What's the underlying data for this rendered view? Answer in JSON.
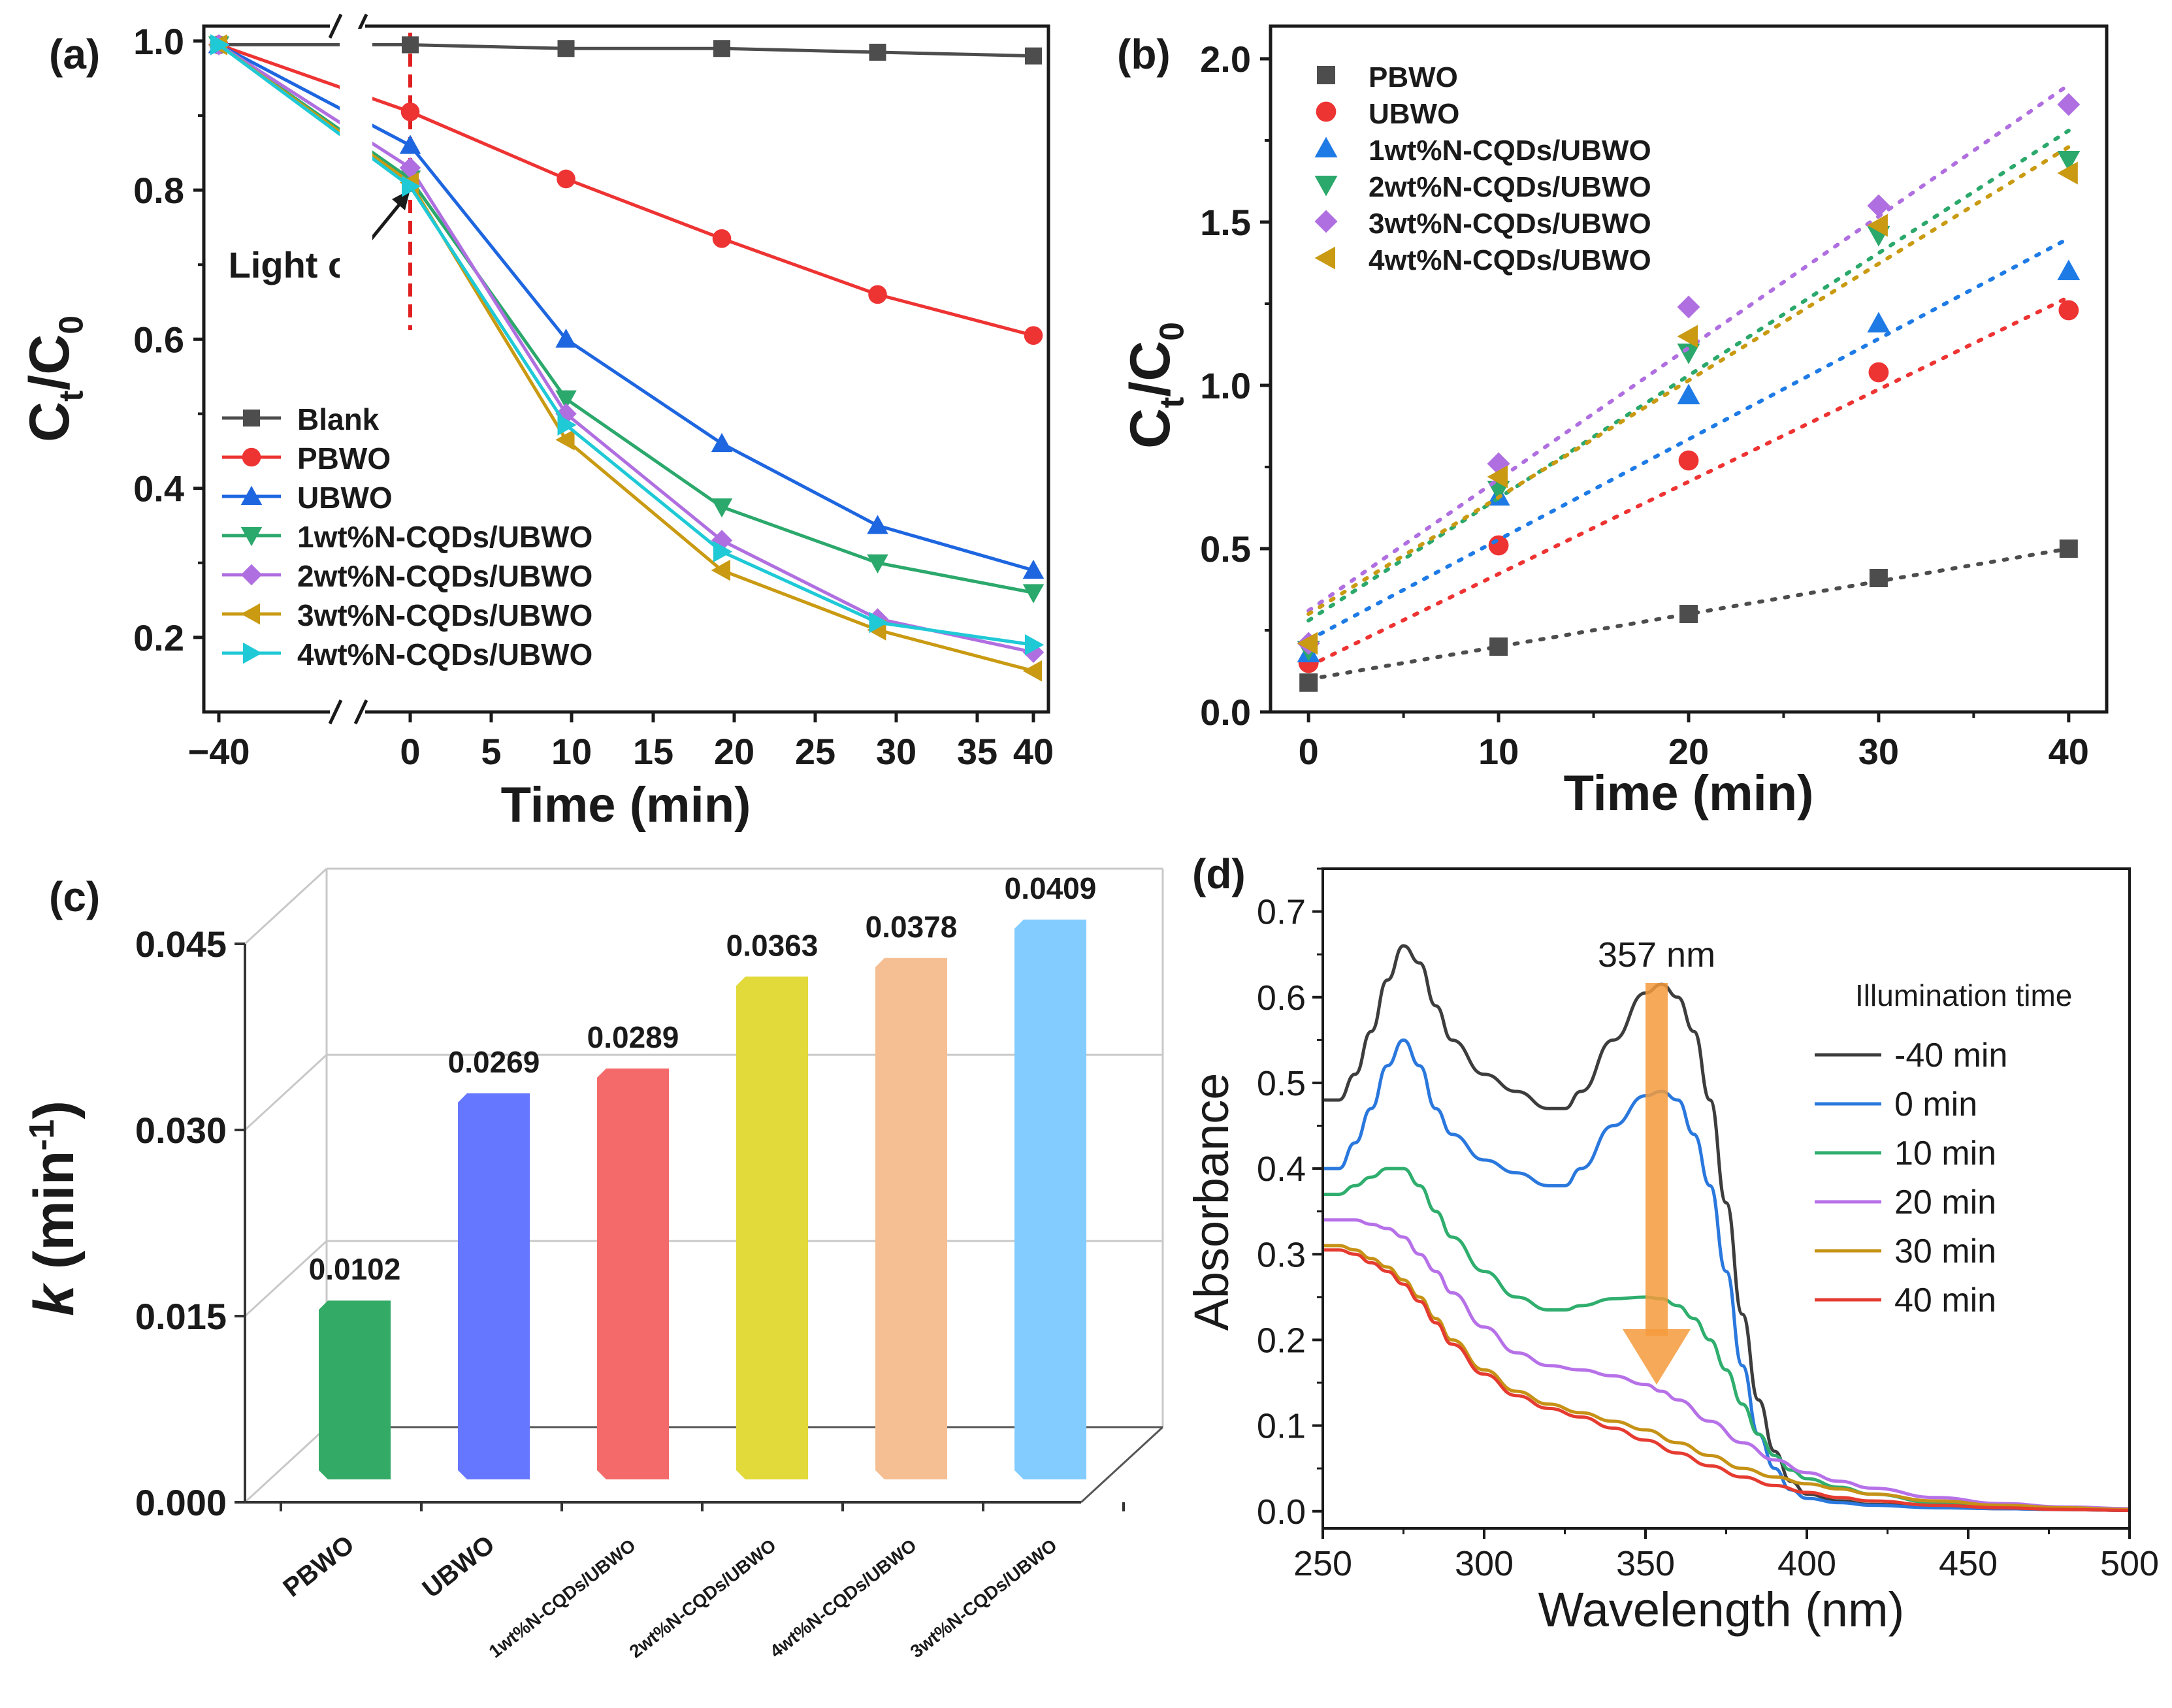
{
  "colors": {
    "blank": "#4d4d4d",
    "pbwo": "#ee3333",
    "ubwo": "#1e66e0",
    "n1": "#2ba86b",
    "n2": "#b06fe0",
    "n3": "#c99a12",
    "n4": "#1fc9d6",
    "gray": "#4d4d4d",
    "red": "#ee3333",
    "blue": "#1e7be6",
    "green": "#2ba86b",
    "purple": "#b06fe0",
    "gold": "#c99a12",
    "bar_green": "#33aa66",
    "bar_blue": "#6677ff",
    "bar_red": "#f46a6a",
    "bar_yellow": "#e2d93a",
    "bar_peach": "#f5bf93",
    "bar_cyan": "#82ccff",
    "arrow": "#f59b3c",
    "marker": "#e02020",
    "spec_k": "#3d3d3d",
    "spec_b": "#2a78dd",
    "spec_g": "#2fae6e",
    "spec_p": "#b771e8",
    "spec_o": "#c69216",
    "spec_r": "#e53b30"
  },
  "chart_data": [
    {
      "panel": "a",
      "panel_label": "(a)",
      "type": "line",
      "xlabel": "Time (min)",
      "ylabel_main": "C",
      "ylabel_sub1": "t",
      "ylabel_slash": "/C",
      "ylabel_sub2": "0",
      "x_break": true,
      "x": [
        -40,
        0,
        10,
        20,
        30,
        40
      ],
      "xticks": [
        "−40",
        "0",
        "5",
        "10",
        "15",
        "20",
        "25",
        "30",
        "35",
        "40"
      ],
      "yticks": [
        "0.2",
        "0.4",
        "0.6",
        "0.8",
        "1.0"
      ],
      "ylim": [
        0.1,
        1.02
      ],
      "annotation": "Light on",
      "series": [
        {
          "name": "Blank",
          "color": "blank",
          "marker": "square",
          "values": [
            0.995,
            0.995,
            0.99,
            0.99,
            0.985,
            0.98
          ]
        },
        {
          "name": "PBWO",
          "color": "pbwo",
          "marker": "circle",
          "values": [
            0.995,
            0.905,
            0.815,
            0.735,
            0.66,
            0.605
          ]
        },
        {
          "name": "UBWO",
          "color": "ubwo",
          "marker": "triangle-up",
          "values": [
            0.995,
            0.86,
            0.6,
            0.46,
            0.35,
            0.29
          ]
        },
        {
          "name": "1wt%N-CQDs/UBWO",
          "color": "n1",
          "marker": "triangle-down",
          "values": [
            0.995,
            0.815,
            0.52,
            0.375,
            0.3,
            0.26
          ]
        },
        {
          "name": "2wt%N-CQDs/UBWO",
          "color": "n2",
          "marker": "diamond",
          "values": [
            0.995,
            0.83,
            0.5,
            0.33,
            0.225,
            0.18
          ]
        },
        {
          "name": "3wt%N-CQDs/UBWO",
          "color": "n3",
          "marker": "triangle-left",
          "values": [
            0.995,
            0.81,
            0.465,
            0.29,
            0.21,
            0.155
          ]
        },
        {
          "name": "4wt%N-CQDs/UBWO",
          "color": "n4",
          "marker": "triangle-right",
          "values": [
            0.995,
            0.805,
            0.485,
            0.315,
            0.22,
            0.19
          ]
        }
      ]
    },
    {
      "panel": "b",
      "panel_label": "(b)",
      "type": "scatter",
      "xlabel": "Time (min)",
      "ylabel_main": "C",
      "ylabel_sub1": "t",
      "ylabel_slash": "/C",
      "ylabel_sub2": "0",
      "x": [
        0,
        10,
        20,
        30,
        40
      ],
      "xticks": [
        "0",
        "10",
        "20",
        "30",
        "40"
      ],
      "yticks": [
        "0.0",
        "0.5",
        "1.0",
        "1.5",
        "2.0"
      ],
      "xlim": [
        -2,
        42
      ],
      "ylim": [
        0,
        2.1
      ],
      "series": [
        {
          "name": "PBWO",
          "color": "gray",
          "marker": "square",
          "values": [
            0.09,
            0.2,
            0.3,
            0.41,
            0.5
          ],
          "fit": [
            0.1,
            0.5
          ]
        },
        {
          "name": "UBWO",
          "color": "red",
          "marker": "circle",
          "values": [
            0.15,
            0.51,
            0.77,
            1.04,
            1.23
          ],
          "fit": [
            0.14,
            1.27
          ]
        },
        {
          "name": "1wt%N-CQDs/UBWO",
          "color": "blue",
          "marker": "triangle-up",
          "values": [
            0.18,
            0.66,
            0.97,
            1.19,
            1.35
          ],
          "fit": [
            0.22,
            1.45
          ]
        },
        {
          "name": "2wt%N-CQDs/UBWO",
          "color": "green",
          "marker": "triangle-down",
          "values": [
            0.19,
            0.68,
            1.1,
            1.46,
            1.69
          ],
          "fit": [
            0.28,
            1.78
          ]
        },
        {
          "name": "3wt%N-CQDs/UBWO",
          "color": "purple",
          "marker": "diamond",
          "values": [
            0.21,
            0.76,
            1.24,
            1.55,
            1.86
          ],
          "fit": [
            0.31,
            1.92
          ]
        },
        {
          "name": "4wt%N-CQDs/UBWO",
          "color": "gold",
          "marker": "triangle-left",
          "values": [
            0.21,
            0.72,
            1.15,
            1.49,
            1.65
          ],
          "fit": [
            0.3,
            1.73
          ]
        }
      ]
    },
    {
      "panel": "c",
      "panel_label": "(c)",
      "type": "bar",
      "ylabel_main": "k",
      "ylabel_unit": " (min",
      "ylabel_exp": "-1",
      "ylabel_close": ")",
      "yticks": [
        "0.000",
        "0.015",
        "0.030",
        "0.045"
      ],
      "ylim": [
        0,
        0.045
      ],
      "categories": [
        "PBWO",
        "UBWO",
        "1wt%N-CQDs/UBWO",
        "2wt%N-CQDs/UBWO",
        "4wt%N-CQDs/UBWO",
        "3wt%N-CQDs/UBWO"
      ],
      "values": [
        0.0102,
        0.0269,
        0.0289,
        0.0363,
        0.0378,
        0.0409
      ],
      "labels": [
        "0.0102",
        "0.0269",
        "0.0289",
        "0.0363",
        "0.0378",
        "0.0409"
      ],
      "bar_colors": [
        "bar_green",
        "bar_blue",
        "bar_red",
        "bar_yellow",
        "bar_peach",
        "bar_cyan"
      ]
    },
    {
      "panel": "d",
      "panel_label": "(d)",
      "type": "line",
      "xlabel": "Wavelength (nm)",
      "ylabel": "Absorbance",
      "xticks": [
        "250",
        "300",
        "350",
        "400",
        "450",
        "500"
      ],
      "yticks": [
        "0.0",
        "0.1",
        "0.2",
        "0.3",
        "0.4",
        "0.5",
        "0.6",
        "0.7"
      ],
      "xlim": [
        250,
        500
      ],
      "ylim": [
        -0.02,
        0.75
      ],
      "annotation": "357 nm",
      "legend_title": "Illumination time",
      "series": [
        {
          "name": "-40 min",
          "color": "spec_k",
          "x": [
            250,
            255,
            260,
            265,
            270,
            275,
            280,
            285,
            290,
            300,
            310,
            320,
            325,
            330,
            340,
            350,
            355,
            360,
            365,
            370,
            375,
            380,
            385,
            390,
            395,
            400,
            410,
            420,
            440,
            460,
            480,
            500
          ],
          "values": [
            0.48,
            0.48,
            0.51,
            0.56,
            0.62,
            0.66,
            0.64,
            0.59,
            0.55,
            0.51,
            0.49,
            0.47,
            0.47,
            0.49,
            0.55,
            0.605,
            0.615,
            0.6,
            0.56,
            0.48,
            0.36,
            0.23,
            0.13,
            0.07,
            0.035,
            0.02,
            0.012,
            0.008,
            0.005,
            0.003,
            0.002,
            0.001
          ]
        },
        {
          "name": "0 min",
          "color": "spec_b",
          "x": [
            250,
            255,
            260,
            265,
            270,
            275,
            280,
            285,
            290,
            300,
            310,
            320,
            325,
            330,
            340,
            350,
            355,
            360,
            365,
            370,
            375,
            380,
            385,
            390,
            395,
            400,
            410,
            420,
            440,
            460,
            480,
            500
          ],
          "values": [
            0.4,
            0.4,
            0.43,
            0.47,
            0.52,
            0.55,
            0.52,
            0.47,
            0.44,
            0.41,
            0.395,
            0.38,
            0.38,
            0.4,
            0.45,
            0.485,
            0.49,
            0.48,
            0.44,
            0.38,
            0.28,
            0.17,
            0.09,
            0.05,
            0.025,
            0.015,
            0.01,
            0.007,
            0.004,
            0.003,
            0.002,
            0.001
          ]
        },
        {
          "name": "10 min",
          "color": "spec_g",
          "x": [
            250,
            255,
            260,
            265,
            270,
            275,
            280,
            285,
            290,
            300,
            310,
            320,
            325,
            330,
            340,
            350,
            355,
            360,
            365,
            370,
            375,
            380,
            385,
            390,
            395,
            400,
            410,
            420,
            440,
            460,
            480,
            500
          ],
          "values": [
            0.37,
            0.37,
            0.38,
            0.39,
            0.4,
            0.4,
            0.38,
            0.35,
            0.32,
            0.28,
            0.25,
            0.235,
            0.235,
            0.24,
            0.248,
            0.25,
            0.248,
            0.24,
            0.225,
            0.2,
            0.165,
            0.125,
            0.09,
            0.065,
            0.048,
            0.038,
            0.028,
            0.02,
            0.01,
            0.005,
            0.003,
            0.002
          ]
        },
        {
          "name": "20 min",
          "color": "spec_p",
          "x": [
            250,
            255,
            260,
            265,
            270,
            275,
            280,
            285,
            290,
            300,
            310,
            320,
            330,
            340,
            350,
            355,
            360,
            370,
            380,
            390,
            400,
            410,
            420,
            440,
            460,
            480,
            500
          ],
          "values": [
            0.34,
            0.34,
            0.34,
            0.335,
            0.33,
            0.32,
            0.3,
            0.28,
            0.255,
            0.215,
            0.185,
            0.17,
            0.165,
            0.158,
            0.148,
            0.14,
            0.13,
            0.105,
            0.08,
            0.06,
            0.045,
            0.035,
            0.027,
            0.016,
            0.009,
            0.005,
            0.003
          ]
        },
        {
          "name": "30 min",
          "color": "spec_o",
          "x": [
            250,
            255,
            260,
            265,
            270,
            275,
            280,
            285,
            290,
            300,
            310,
            320,
            330,
            340,
            350,
            360,
            370,
            380,
            390,
            400,
            410,
            420,
            440,
            460,
            480,
            500
          ],
          "values": [
            0.31,
            0.31,
            0.305,
            0.295,
            0.285,
            0.27,
            0.25,
            0.225,
            0.2,
            0.165,
            0.14,
            0.125,
            0.115,
            0.105,
            0.095,
            0.08,
            0.065,
            0.05,
            0.04,
            0.032,
            0.026,
            0.02,
            0.012,
            0.007,
            0.004,
            0.002
          ]
        },
        {
          "name": "40 min",
          "color": "spec_r",
          "x": [
            250,
            255,
            260,
            265,
            270,
            275,
            280,
            285,
            290,
            300,
            310,
            320,
            330,
            340,
            350,
            360,
            370,
            380,
            390,
            400,
            410,
            420,
            440,
            460,
            480,
            500
          ],
          "values": [
            0.305,
            0.305,
            0.3,
            0.29,
            0.28,
            0.265,
            0.245,
            0.22,
            0.195,
            0.16,
            0.135,
            0.12,
            0.11,
            0.097,
            0.083,
            0.068,
            0.053,
            0.04,
            0.03,
            0.022,
            0.016,
            0.012,
            0.007,
            0.004,
            0.002,
            0.001
          ]
        }
      ]
    }
  ]
}
